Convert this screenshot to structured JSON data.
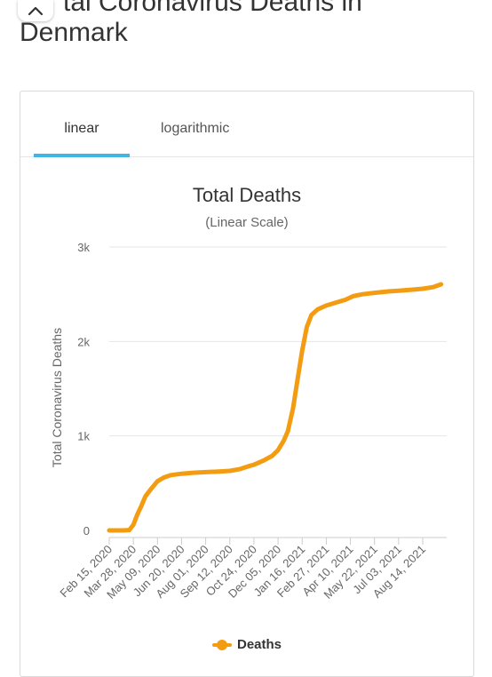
{
  "heading": {
    "line1": "tal Coronavirus Deaths in",
    "line2": "Denmark"
  },
  "tabs": [
    {
      "label": "linear",
      "active": true
    },
    {
      "label": "logarithmic",
      "active": false
    }
  ],
  "colors": {
    "series": "#f39c12",
    "tab_accent": "#41b6e6",
    "grid": "#e6e6e6"
  },
  "chart_data": {
    "type": "line",
    "title": "Total Deaths",
    "subtitle": "(Linear Scale)",
    "ylabel": "Total Coronavirus Deaths",
    "xlabel": "",
    "ylim": [
      0,
      3000
    ],
    "y_ticks": [
      {
        "value": 0,
        "label": "0"
      },
      {
        "value": 1000,
        "label": "1k"
      },
      {
        "value": 2000,
        "label": "2k"
      },
      {
        "value": 3000,
        "label": "3k"
      }
    ],
    "x_ticks": [
      "Feb 15, 2020",
      "Mar 28, 2020",
      "May 09, 2020",
      "Jun 20, 2020",
      "Aug 01, 2020",
      "Sep 12, 2020",
      "Oct 24, 2020",
      "Dec 05, 2020",
      "Jan 16, 2021",
      "Feb 27, 2021",
      "Apr 10, 2021",
      "May 22, 2021",
      "Jul 03, 2021",
      "Aug 14, 2021"
    ],
    "grid": true,
    "legend": "bottom",
    "series": [
      {
        "name": "Deaths",
        "points": [
          [
            "2020-02-15",
            0
          ],
          [
            "2020-03-10",
            0
          ],
          [
            "2020-03-21",
            4
          ],
          [
            "2020-03-28",
            60
          ],
          [
            "2020-04-04",
            170
          ],
          [
            "2020-04-11",
            260
          ],
          [
            "2020-04-18",
            360
          ],
          [
            "2020-04-28",
            440
          ],
          [
            "2020-05-09",
            520
          ],
          [
            "2020-05-20",
            560
          ],
          [
            "2020-06-01",
            585
          ],
          [
            "2020-06-20",
            600
          ],
          [
            "2020-07-10",
            610
          ],
          [
            "2020-08-01",
            617
          ],
          [
            "2020-08-20",
            622
          ],
          [
            "2020-09-12",
            630
          ],
          [
            "2020-09-30",
            650
          ],
          [
            "2020-10-15",
            680
          ],
          [
            "2020-10-24",
            695
          ],
          [
            "2020-11-10",
            740
          ],
          [
            "2020-11-25",
            790
          ],
          [
            "2020-12-05",
            850
          ],
          [
            "2020-12-15",
            950
          ],
          [
            "2020-12-22",
            1050
          ],
          [
            "2020-12-31",
            1290
          ],
          [
            "2021-01-08",
            1600
          ],
          [
            "2021-01-16",
            1900
          ],
          [
            "2021-01-24",
            2150
          ],
          [
            "2021-02-01",
            2280
          ],
          [
            "2021-02-12",
            2340
          ],
          [
            "2021-02-27",
            2380
          ],
          [
            "2021-03-15",
            2410
          ],
          [
            "2021-04-01",
            2440
          ],
          [
            "2021-04-15",
            2480
          ],
          [
            "2021-05-01",
            2500
          ],
          [
            "2021-05-22",
            2515
          ],
          [
            "2021-06-15",
            2530
          ],
          [
            "2021-07-03",
            2537
          ],
          [
            "2021-07-25",
            2548
          ],
          [
            "2021-08-14",
            2558
          ],
          [
            "2021-09-01",
            2575
          ],
          [
            "2021-09-15",
            2605
          ]
        ]
      }
    ]
  }
}
